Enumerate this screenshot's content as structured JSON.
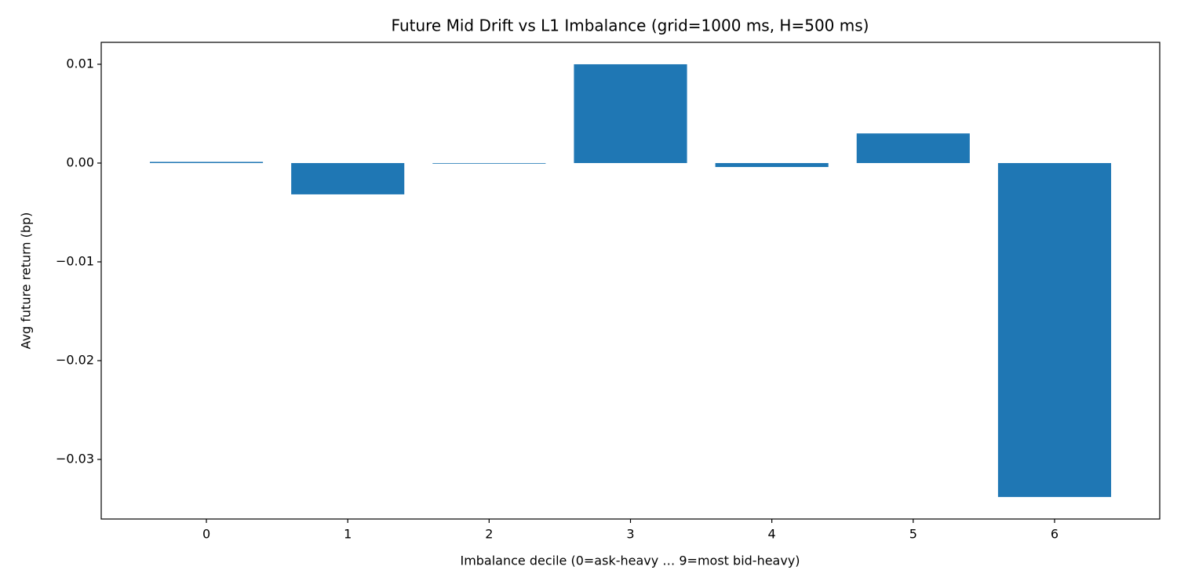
{
  "chart_data": {
    "type": "bar",
    "title": "Future Mid Drift vs L1 Imbalance (grid=1000 ms, H=500 ms)",
    "x_label": "Imbalance decile (0=ask-heavy … 9=most bid-heavy)",
    "y_label": "Avg future return (bp)",
    "categories": [
      "0",
      "1",
      "2",
      "3",
      "4",
      "5",
      "6"
    ],
    "values": [
      0.00012,
      -0.00317,
      -5e-05,
      0.01,
      -0.0004,
      0.003,
      -0.0338
    ],
    "color": "#1f77b4",
    "ylim": [
      -0.03603,
      0.01222
    ],
    "yticks": [
      {
        "value": -0.03,
        "label": "−0.03"
      },
      {
        "value": -0.02,
        "label": "−0.02"
      },
      {
        "value": -0.01,
        "label": "−0.01"
      },
      {
        "value": 0,
        "label": "0.00"
      },
      0.01
    ],
    "grid": false
  }
}
